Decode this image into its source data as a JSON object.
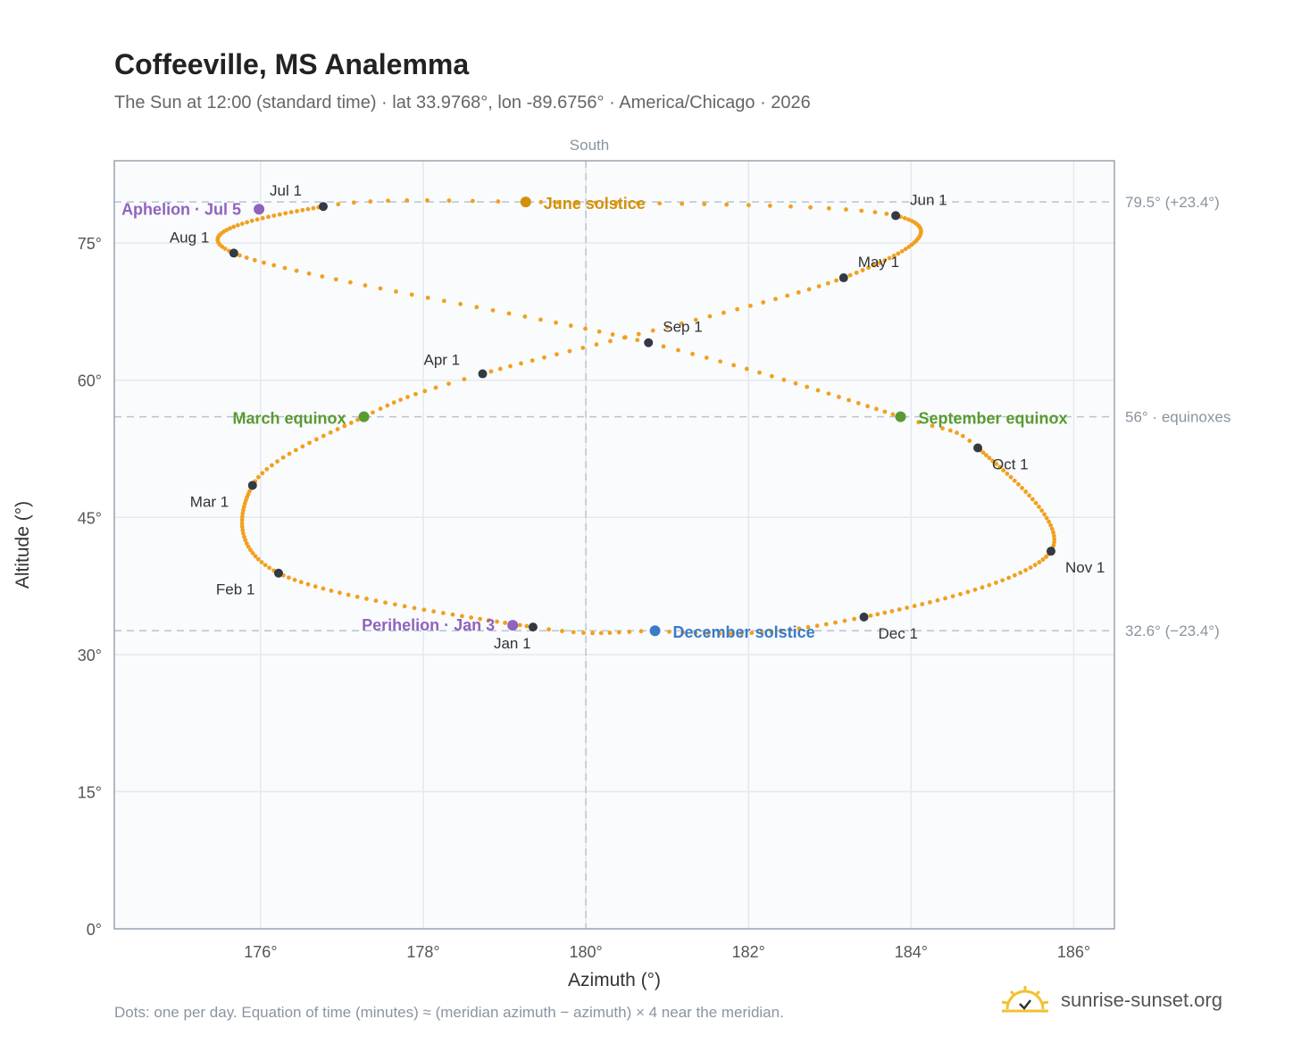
{
  "header": {
    "title": "Coffeeville, MS Analemma",
    "subtitle": "The Sun at 12:00 (standard time) · lat 33.9768°, lon -89.6756° · America/Chicago · 2026"
  },
  "footnote": "Dots: one per day. Equation of time (minutes) ≈ (meridian azimuth − azimuth) × 4 near the meridian.",
  "brand": {
    "name": "sunrise-sunset.org",
    "icon": "sun-logo-icon"
  },
  "colors": {
    "path": "#f2a01e",
    "month": "#333a44",
    "equinox": "#5a9a32",
    "june": "#d4900a",
    "december": "#3a7bc8",
    "apsis": "#9063bd",
    "ref": "#b8c4d0"
  },
  "chart_data": {
    "type": "scatter",
    "title": "Coffeeville, MS Analemma",
    "xlabel": "Azimuth (°)",
    "ylabel": "Altitude (°)",
    "xlim": [
      174.2,
      186.5
    ],
    "ylim": [
      0,
      84
    ],
    "x_ticks": [
      176,
      178,
      180,
      182,
      184,
      186
    ],
    "x_tick_labels": [
      "176°",
      "178°",
      "180°",
      "182°",
      "184°",
      "186°"
    ],
    "y_ticks": [
      0,
      15,
      30,
      45,
      60,
      75
    ],
    "y_tick_labels": [
      "0°",
      "15°",
      "30°",
      "45°",
      "60°",
      "75°"
    ],
    "grid": true,
    "meridian": {
      "x": 180,
      "label": "South"
    },
    "reference_lines": [
      {
        "y": 79.5,
        "label": "79.5° (+23.4°)"
      },
      {
        "y": 56,
        "label": "56° · equinoxes"
      },
      {
        "y": 32.6,
        "label": "32.6° (−23.4°)"
      }
    ],
    "path_anchors": [
      [
        1,
        179.35,
        33.0
      ],
      [
        32,
        176.22,
        38.9
      ],
      [
        60,
        175.9,
        48.5
      ],
      [
        79,
        177.27,
        56.0
      ],
      [
        91,
        178.73,
        60.7
      ],
      [
        121,
        183.17,
        71.2
      ],
      [
        152,
        183.81,
        78.0
      ],
      [
        172,
        179.26,
        79.5
      ],
      [
        182,
        176.77,
        79.0
      ],
      [
        213,
        175.67,
        73.9
      ],
      [
        244,
        180.77,
        64.1
      ],
      [
        266,
        183.87,
        56.0
      ],
      [
        274,
        184.82,
        52.6
      ],
      [
        305,
        185.72,
        41.3
      ],
      [
        335,
        183.42,
        34.1
      ],
      [
        355,
        180.85,
        32.6
      ],
      [
        366,
        179.35,
        33.0
      ]
    ],
    "month_points": [
      {
        "label": "Jan 1",
        "x": 179.35,
        "y": 33.0
      },
      {
        "label": "Feb 1",
        "x": 176.22,
        "y": 38.9
      },
      {
        "label": "Mar 1",
        "x": 175.9,
        "y": 48.5
      },
      {
        "label": "Apr 1",
        "x": 178.73,
        "y": 60.7
      },
      {
        "label": "May 1",
        "x": 183.17,
        "y": 71.2
      },
      {
        "label": "Jun 1",
        "x": 183.81,
        "y": 78.0
      },
      {
        "label": "Jul 1",
        "x": 176.77,
        "y": 79.0
      },
      {
        "label": "Aug 1",
        "x": 175.67,
        "y": 73.9
      },
      {
        "label": "Sep 1",
        "x": 180.77,
        "y": 64.1
      },
      {
        "label": "Oct 1",
        "x": 184.82,
        "y": 52.6
      },
      {
        "label": "Nov 1",
        "x": 185.72,
        "y": 41.3
      },
      {
        "label": "Dec 1",
        "x": 183.42,
        "y": 34.1
      }
    ],
    "events": [
      {
        "label": "June solstice",
        "x": 179.26,
        "y": 79.5,
        "color": "#d4900a"
      },
      {
        "label": "March equinox",
        "x": 177.27,
        "y": 56.0,
        "color": "#5a9a32"
      },
      {
        "label": "September equinox",
        "x": 183.87,
        "y": 56.0,
        "color": "#5a9a32"
      },
      {
        "label": "December solstice",
        "x": 180.85,
        "y": 32.6,
        "color": "#3a7bc8"
      },
      {
        "label": "Aphelion · Jul 5",
        "x": 175.98,
        "y": 78.7,
        "color": "#9063bd"
      },
      {
        "label": "Perihelion · Jan 3",
        "x": 179.1,
        "y": 33.2,
        "color": "#9063bd"
      }
    ]
  }
}
